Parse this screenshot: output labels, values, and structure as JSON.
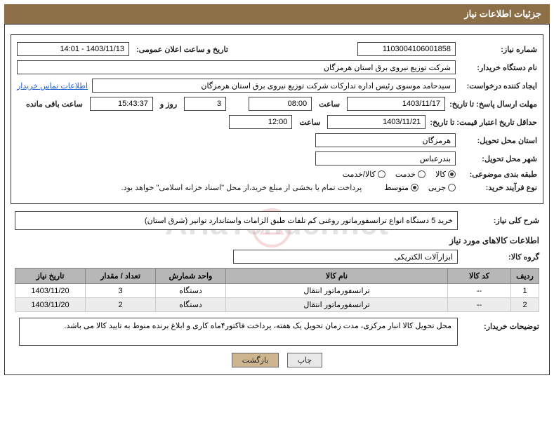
{
  "title_bar": "جزئیات اطلاعات نیاز",
  "labels": {
    "need_no": "شماره نیاز:",
    "announce_dt": "تاریخ و ساعت اعلان عمومی:",
    "buyer_org": "نام دستگاه خریدار:",
    "requester": "ایجاد کننده درخواست:",
    "reply_deadline": "مهلت ارسال پاسخ: تا تاریخ:",
    "time": "ساعت",
    "days_and": "روز و",
    "time_left": "ساعت باقی مانده",
    "price_validity": "حداقل تاریخ اعتبار قیمت: تا تاریخ:",
    "delivery_province": "استان محل تحویل:",
    "delivery_city": "شهر محل تحویل:",
    "category": "طبقه بندی موضوعی:",
    "purchase_type": "نوع فرآیند خرید:",
    "purchase_note": "پرداخت تمام یا بخشی از مبلغ خرید،از محل \"اسناد خزانه اسلامی\" خواهد بود.",
    "overall_desc": "شرح کلی نیاز:",
    "section_goods": "اطلاعات کالاهای مورد نیاز",
    "goods_group": "گروه کالا:",
    "buyer_notes": "توضیحات خریدار:",
    "contact_link": "اطلاعات تماس خریدار"
  },
  "fields": {
    "need_no": "1103004106001858",
    "announce_dt": "1403/11/13 - 14:01",
    "buyer_org": "شرکت توزیع نیروی برق استان هرمزگان",
    "requester": "سیدحامد موسوی رئیس اداره تدارکات شرکت توزیع نیروی برق استان هرمزگان",
    "reply_date": "1403/11/17",
    "reply_time": "08:00",
    "days_left": "3",
    "countdown": "15:43:37",
    "price_valid_date": "1403/11/21",
    "price_valid_time": "12:00",
    "province": "هرمزگان",
    "city": "بندرعباس",
    "overall_desc": "خرید 5 دستگاه انواع ترانسفورماتور روغنی کم تلفات طبق الزامات واستاندارد توانیر (شرق استان)",
    "goods_group": "ابزارآلات الکتریکی",
    "buyer_notes": "محل تحویل کالا انبار مرکزی، مدت زمان تحویل یک هفته، پرداخت فاکتور۴ماه کاری  و ابلاغ برنده منوط به تایید کالا می باشد."
  },
  "radios": {
    "cat_goods": "کالا",
    "cat_service": "خدمت",
    "cat_both": "کالا/خدمت",
    "pt_partial": "جزیی",
    "pt_medium": "متوسط"
  },
  "table": {
    "headers": [
      "ردیف",
      "کد کالا",
      "نام کالا",
      "واحد شمارش",
      "تعداد / مقدار",
      "تاریخ نیاز"
    ],
    "rows": [
      [
        "1",
        "--",
        "ترانسفورماتور انتقال",
        "دستگاه",
        "3",
        "1403/11/20"
      ],
      [
        "2",
        "--",
        "ترانسفورماتور انتقال",
        "دستگاه",
        "2",
        "1403/11/20"
      ]
    ]
  },
  "buttons": {
    "print": "چاپ",
    "back": "بازگشت"
  },
  "watermark_text": "AriaTender.net",
  "colors": {
    "title_bg": "#8c6f47",
    "th_bg": "#b7b7b7",
    "btn_brown": "#ccb58f"
  }
}
